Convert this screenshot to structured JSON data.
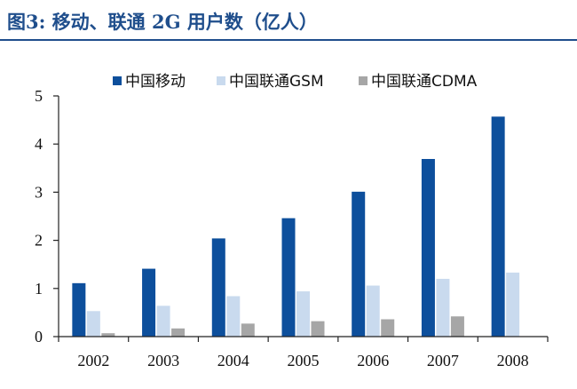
{
  "figure": {
    "title": "图3: 移动、联通 2G 用户数（亿人）"
  },
  "chart_data": {
    "type": "bar",
    "categories": [
      "2002",
      "2003",
      "2004",
      "2005",
      "2006",
      "2007",
      "2008"
    ],
    "series": [
      {
        "name": "中国移动",
        "color": "#0d4f9c",
        "values": [
          1.11,
          1.41,
          2.04,
          2.46,
          3.01,
          3.69,
          4.57
        ]
      },
      {
        "name": "中国联通GSM",
        "color": "#c9daee",
        "values": [
          0.53,
          0.64,
          0.84,
          0.94,
          1.06,
          1.2,
          1.33
        ]
      },
      {
        "name": "中国联通CDMA",
        "color": "#a6a6a6",
        "values": [
          0.07,
          0.17,
          0.27,
          0.32,
          0.36,
          0.42,
          0.0
        ]
      }
    ],
    "yticks": [
      0,
      1,
      2,
      3,
      4,
      5
    ],
    "ylim": [
      0,
      5
    ],
    "xlabel": "",
    "ylabel": "",
    "grid": false,
    "legend": "top"
  }
}
